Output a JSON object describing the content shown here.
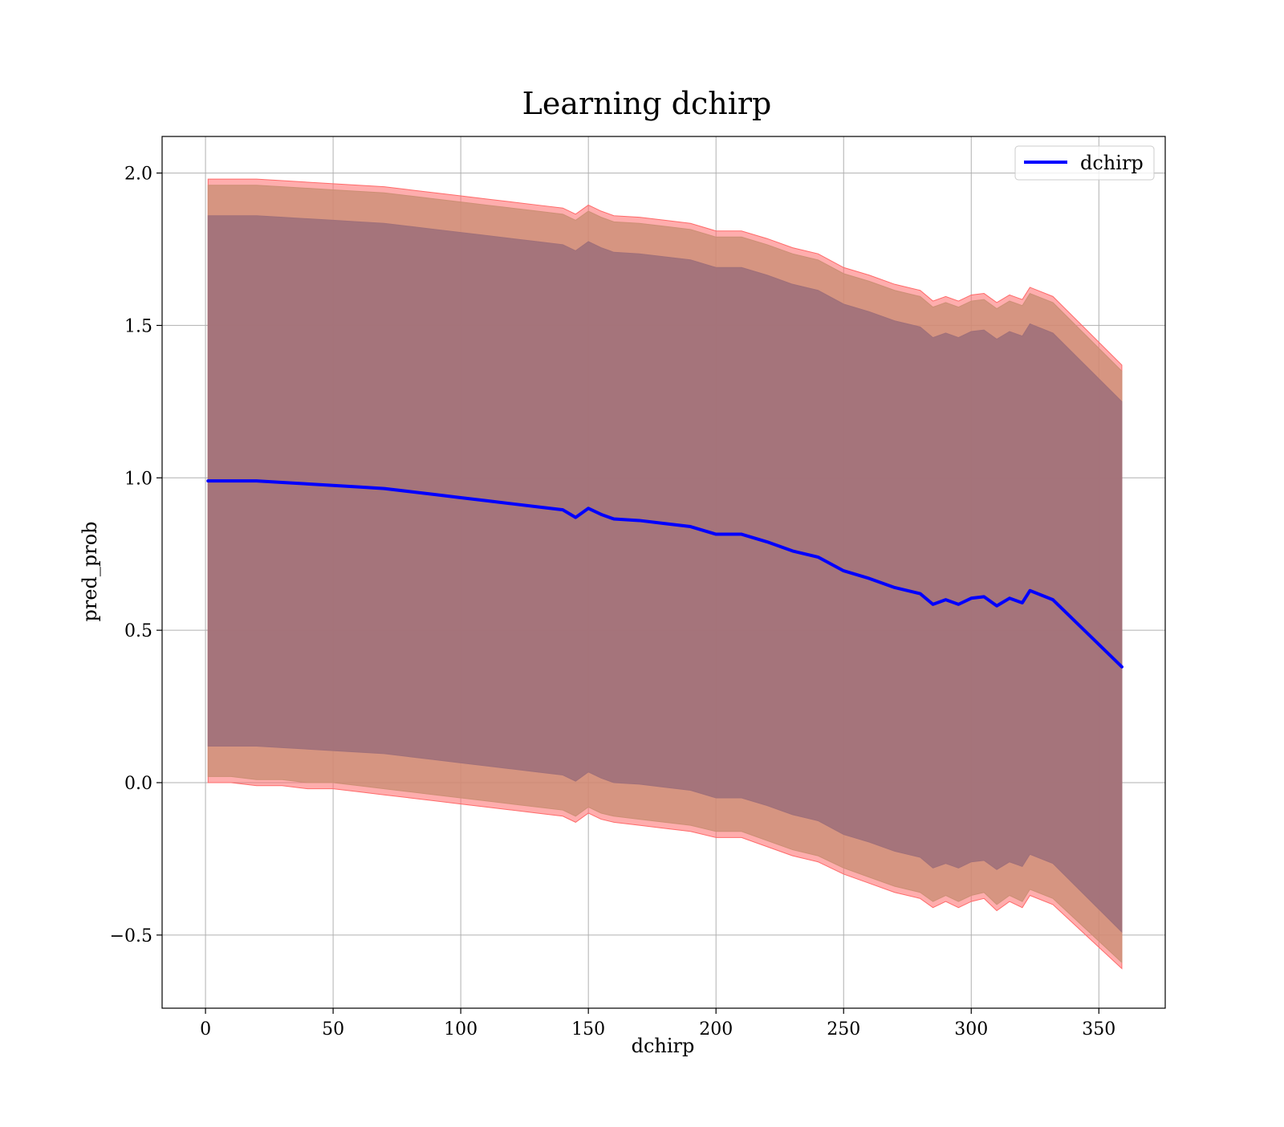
{
  "chart_data": {
    "type": "line",
    "title": "Learning dchirp",
    "xlabel": "dchirp",
    "ylabel": "pred_prob",
    "xlim": [
      -17,
      376
    ],
    "ylim": [
      -0.74,
      2.12
    ],
    "grid": true,
    "legend_position": "top-right",
    "x_ticks": [
      0,
      50,
      100,
      150,
      200,
      250,
      300,
      350
    ],
    "y_ticks": [
      -0.5,
      0.0,
      0.5,
      1.0,
      1.5,
      2.0
    ],
    "x_tick_labels": [
      "0",
      "50",
      "100",
      "150",
      "200",
      "250",
      "300",
      "350"
    ],
    "y_tick_labels": [
      "−0.5",
      "0.0",
      "0.5",
      "1.0",
      "1.5",
      "2.0"
    ],
    "colors": {
      "line": "#0000ff",
      "band_outer": "#ff6a6a",
      "band_middle": "#cc8f75",
      "band_inner": "#a0707a",
      "grid": "#b0b0b0"
    },
    "x": [
      1,
      10,
      20,
      30,
      40,
      50,
      60,
      70,
      80,
      90,
      100,
      110,
      120,
      130,
      140,
      145,
      150,
      155,
      160,
      170,
      180,
      190,
      200,
      210,
      220,
      230,
      240,
      250,
      260,
      270,
      280,
      285,
      290,
      295,
      300,
      305,
      310,
      315,
      320,
      323,
      332,
      359
    ],
    "series": [
      {
        "name": "dchirp",
        "values": [
          0.99,
          0.99,
          0.99,
          0.985,
          0.98,
          0.975,
          0.97,
          0.965,
          0.955,
          0.945,
          0.935,
          0.925,
          0.915,
          0.905,
          0.895,
          0.87,
          0.9,
          0.88,
          0.865,
          0.86,
          0.85,
          0.84,
          0.815,
          0.815,
          0.79,
          0.76,
          0.74,
          0.695,
          0.67,
          0.64,
          0.62,
          0.585,
          0.6,
          0.585,
          0.605,
          0.61,
          0.58,
          0.605,
          0.59,
          0.63,
          0.6,
          0.38
        ]
      }
    ],
    "bands": [
      {
        "lower": [
          0.0,
          0.0,
          -0.01,
          -0.01,
          -0.02,
          -0.02,
          -0.03,
          -0.04,
          -0.05,
          -0.06,
          -0.07,
          -0.08,
          -0.09,
          -0.1,
          -0.11,
          -0.13,
          -0.1,
          -0.12,
          -0.13,
          -0.14,
          -0.15,
          -0.16,
          -0.18,
          -0.18,
          -0.21,
          -0.24,
          -0.26,
          -0.3,
          -0.33,
          -0.36,
          -0.38,
          -0.41,
          -0.39,
          -0.41,
          -0.39,
          -0.38,
          -0.42,
          -0.39,
          -0.41,
          -0.37,
          -0.4,
          -0.61
        ],
        "upper": [
          1.98,
          1.98,
          1.98,
          1.975,
          1.97,
          1.965,
          1.96,
          1.955,
          1.945,
          1.935,
          1.925,
          1.915,
          1.905,
          1.895,
          1.885,
          1.865,
          1.895,
          1.875,
          1.86,
          1.855,
          1.845,
          1.835,
          1.81,
          1.81,
          1.785,
          1.755,
          1.735,
          1.69,
          1.665,
          1.635,
          1.615,
          1.58,
          1.595,
          1.58,
          1.6,
          1.605,
          1.575,
          1.6,
          1.585,
          1.625,
          1.595,
          1.37
        ]
      },
      {
        "lower": [
          0.02,
          0.02,
          0.01,
          0.01,
          0.0,
          0.0,
          -0.01,
          -0.02,
          -0.03,
          -0.04,
          -0.05,
          -0.06,
          -0.07,
          -0.08,
          -0.09,
          -0.11,
          -0.08,
          -0.1,
          -0.11,
          -0.12,
          -0.13,
          -0.14,
          -0.16,
          -0.16,
          -0.19,
          -0.22,
          -0.24,
          -0.28,
          -0.31,
          -0.34,
          -0.36,
          -0.39,
          -0.37,
          -0.39,
          -0.37,
          -0.36,
          -0.4,
          -0.37,
          -0.39,
          -0.35,
          -0.38,
          -0.59
        ],
        "upper": [
          1.96,
          1.96,
          1.96,
          1.955,
          1.95,
          1.945,
          1.94,
          1.935,
          1.925,
          1.915,
          1.905,
          1.895,
          1.885,
          1.875,
          1.865,
          1.845,
          1.875,
          1.855,
          1.84,
          1.835,
          1.825,
          1.815,
          1.79,
          1.79,
          1.765,
          1.735,
          1.715,
          1.67,
          1.645,
          1.615,
          1.595,
          1.56,
          1.575,
          1.56,
          1.58,
          1.585,
          1.555,
          1.58,
          1.565,
          1.605,
          1.575,
          1.35
        ]
      },
      {
        "lower": [
          0.12,
          0.12,
          0.12,
          0.115,
          0.11,
          0.105,
          0.1,
          0.095,
          0.085,
          0.075,
          0.065,
          0.055,
          0.045,
          0.035,
          0.025,
          0.005,
          0.035,
          0.015,
          0.0,
          -0.005,
          -0.015,
          -0.025,
          -0.05,
          -0.05,
          -0.075,
          -0.105,
          -0.125,
          -0.17,
          -0.195,
          -0.225,
          -0.245,
          -0.28,
          -0.265,
          -0.28,
          -0.26,
          -0.255,
          -0.285,
          -0.26,
          -0.275,
          -0.235,
          -0.265,
          -0.49
        ],
        "upper": [
          1.86,
          1.86,
          1.86,
          1.855,
          1.85,
          1.845,
          1.84,
          1.835,
          1.825,
          1.815,
          1.805,
          1.795,
          1.785,
          1.775,
          1.765,
          1.745,
          1.775,
          1.755,
          1.74,
          1.735,
          1.725,
          1.715,
          1.69,
          1.69,
          1.665,
          1.635,
          1.615,
          1.57,
          1.545,
          1.515,
          1.495,
          1.46,
          1.475,
          1.46,
          1.48,
          1.485,
          1.455,
          1.48,
          1.465,
          1.505,
          1.475,
          1.25
        ]
      }
    ]
  }
}
